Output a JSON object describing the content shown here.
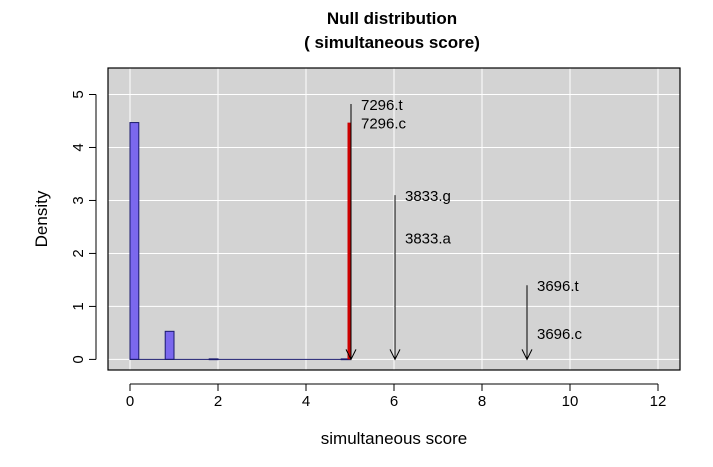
{
  "chart_data": {
    "type": "bar",
    "title": "Null distribution",
    "subtitle": "( simultaneous score)",
    "xlabel": "simultaneous score",
    "ylabel": "Density",
    "xlim": [
      -0.5,
      12.5
    ],
    "ylim": [
      -0.2,
      5.5
    ],
    "x_ticks": [
      0,
      2,
      4,
      6,
      8,
      10,
      12
    ],
    "y_ticks": [
      0,
      1,
      2,
      3,
      4,
      5
    ],
    "grid": true,
    "bin_width": 0.2,
    "histogram": [
      {
        "x0": 0.0,
        "x1": 0.2,
        "density": 4.47
      },
      {
        "x0": 0.8,
        "x1": 1.0,
        "density": 0.53
      },
      {
        "x0": 1.8,
        "x1": 2.0,
        "density": 0.01
      },
      {
        "x0": 4.8,
        "x1": 5.0,
        "density": 0.01
      }
    ],
    "observed_line": {
      "x": 5,
      "y": 4.47,
      "color": "#cc0000"
    },
    "annotations": [
      {
        "label": "7296.t",
        "x": 5,
        "y_top": 4.82
      },
      {
        "label": "7296.c",
        "x": 5,
        "y_top": 4.47
      },
      {
        "label": "3833.g",
        "x": 6,
        "y_top": 3.1
      },
      {
        "label": "3833.a",
        "x": 6,
        "y_top": 2.3
      },
      {
        "label": "3696.t",
        "x": 9,
        "y_top": 1.4
      },
      {
        "label": "3696.c",
        "x": 9,
        "y_top": 0.5
      }
    ],
    "colors": {
      "panel": "#d3d3d3",
      "grid": "#ffffff",
      "bar_fill": "#7b68ee",
      "bar_stroke": "#1a1a6e",
      "arrow": "#000000"
    }
  }
}
